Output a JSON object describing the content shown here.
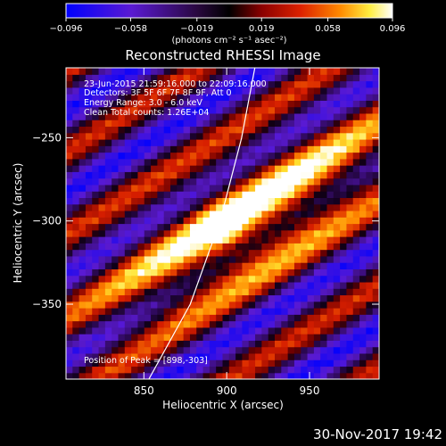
{
  "chart_data": {
    "type": "heatmap",
    "title": "Reconstructed RHESSI Image",
    "xlabel": "Heliocentric X (arcsec)",
    "ylabel": "Heliocentric Y (arcsec)",
    "xlim": [
      803,
      992
    ],
    "ylim": [
      -395,
      -208
    ],
    "x_ticks": [
      850,
      900,
      950
    ],
    "y_ticks": [
      -250,
      -300,
      -350
    ],
    "colorbar": {
      "range": [
        -0.096,
        0.096
      ],
      "tick_values": [
        -0.096,
        -0.058,
        -0.019,
        0.019,
        0.058,
        0.096
      ],
      "tick_labels": [
        "−0.096",
        "−0.058",
        "−0.019",
        "0.019",
        "0.058",
        "0.096"
      ],
      "units_label": "(photons cm⁻² s⁻¹ asec⁻²)"
    },
    "annotations": [
      "23-Jun-2015 21:59:16.000 to 22:09:16.000",
      "Detectors: 3F 5F 6F 7F 8F 9F, Att 0",
      "Energy Range: 3.0 - 6.0 keV",
      "Clean    Total counts: 1.26E+04"
    ],
    "peak_label": "Position of Peak = [898,-303]",
    "peak": [
      898,
      -303
    ],
    "limb_line": [
      [
        853,
        -395
      ],
      [
        878,
        -350
      ],
      [
        896,
        -300
      ],
      [
        909,
        -250
      ],
      [
        917,
        -208
      ]
    ],
    "image_model": {
      "background": -0.07,
      "stripe_amplitude": 0.06,
      "stripe_period_arcsec": 42,
      "stripe_direction_deg": 32,
      "source_peak_value": 0.096,
      "source_center": [
        915,
        -300
      ],
      "source_sigma_along_arcsec": 70,
      "source_sigma_across_arcsec": 22,
      "hot_spot_center": [
        898,
        -303
      ],
      "hot_spot_sigma_arcsec": 8,
      "hot_spot_value": 0.04
    }
  },
  "footer": {
    "date": "30-Nov-2017 19:42"
  }
}
